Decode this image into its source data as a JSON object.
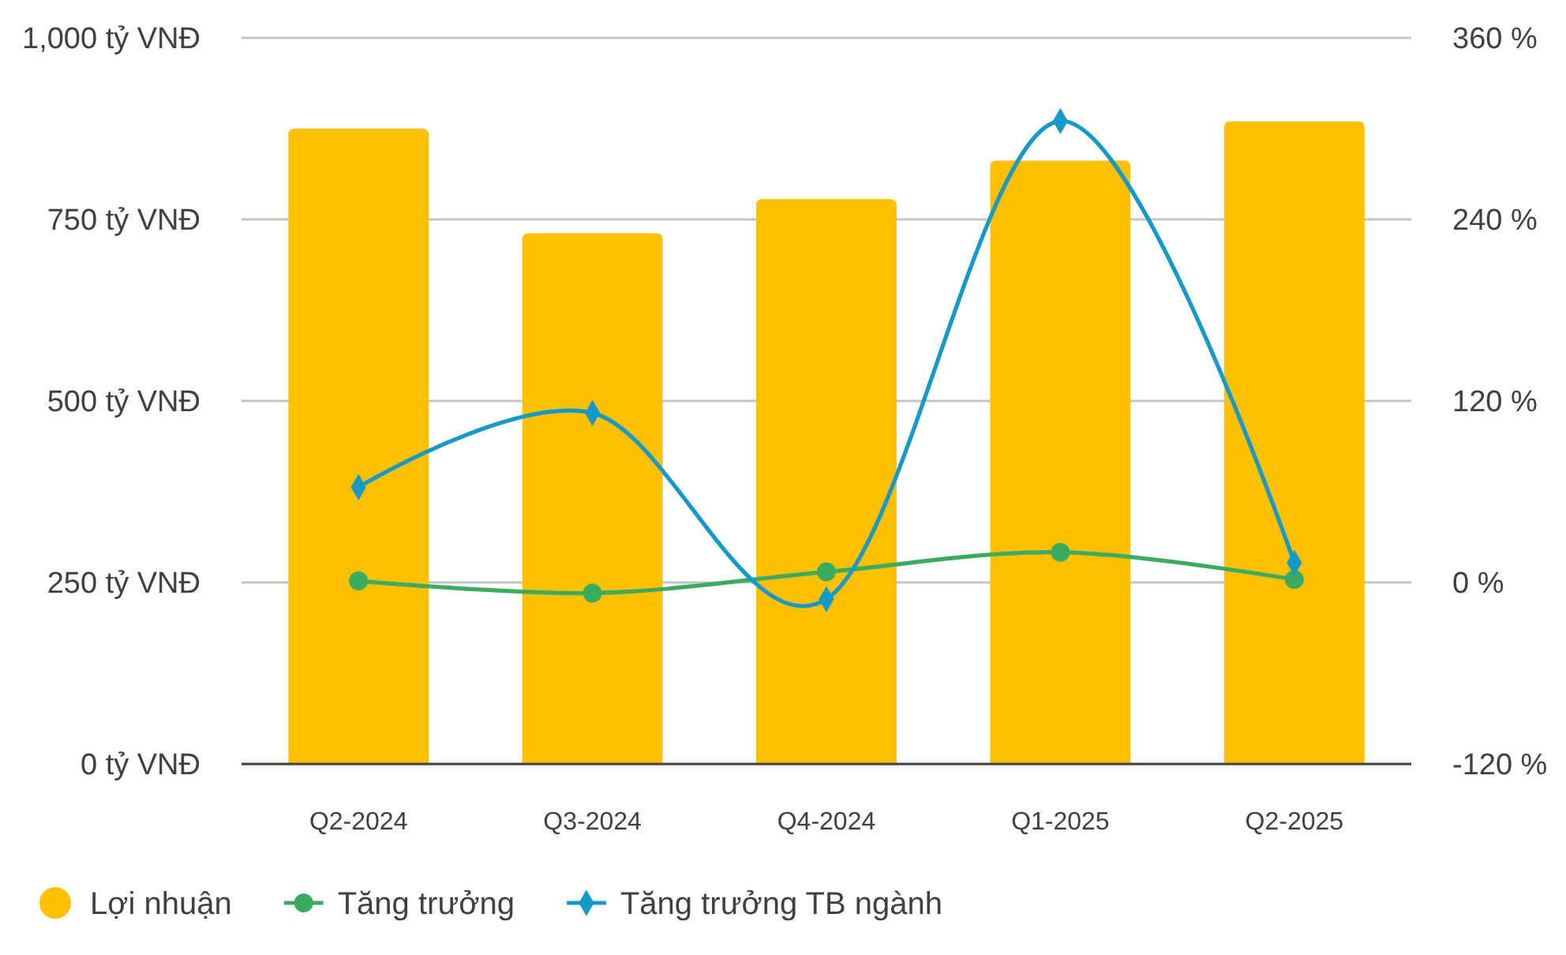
{
  "chart_data": {
    "type": "bar",
    "categories": [
      "Q2-2024",
      "Q3-2024",
      "Q4-2024",
      "Q1-2025",
      "Q2-2025"
    ],
    "series": [
      {
        "name": "Lợi nhuận",
        "color": "#ffc000",
        "values": [
          875,
          731,
          778,
          831,
          885
        ]
      },
      {
        "name": "Tăng trưởng",
        "type": "line",
        "axis": "y2",
        "marker": "circle",
        "color": "#3cab62",
        "values": [
          1,
          -7,
          7,
          20,
          2
        ]
      },
      {
        "name": "Tăng trưởng TB ngành",
        "type": "line",
        "axis": "y2",
        "marker": "diamond",
        "color": "#1599c9",
        "values": [
          63,
          112,
          -11,
          305,
          13
        ]
      }
    ],
    "ylim": [
      0,
      1000
    ],
    "yticks": [
      {
        "value": 0,
        "label": "0 tỷ VNĐ"
      },
      {
        "value": 250,
        "label": "250 tỷ VNĐ"
      },
      {
        "value": 500,
        "label": "500 tỷ VNĐ"
      },
      {
        "value": 750,
        "label": "750 tỷ VNĐ"
      },
      {
        "value": 1000,
        "label": "1,000 tỷ VNĐ"
      }
    ],
    "y2lim": [
      -120,
      360
    ],
    "y2ticks": [
      {
        "value": -120,
        "label": "-120 %"
      },
      {
        "value": 0,
        "label": "0 %"
      },
      {
        "value": 120,
        "label": "120 %"
      },
      {
        "value": 240,
        "label": "240 %"
      },
      {
        "value": 360,
        "label": "360 %"
      }
    ],
    "grid": "y",
    "legend": "bottom"
  }
}
